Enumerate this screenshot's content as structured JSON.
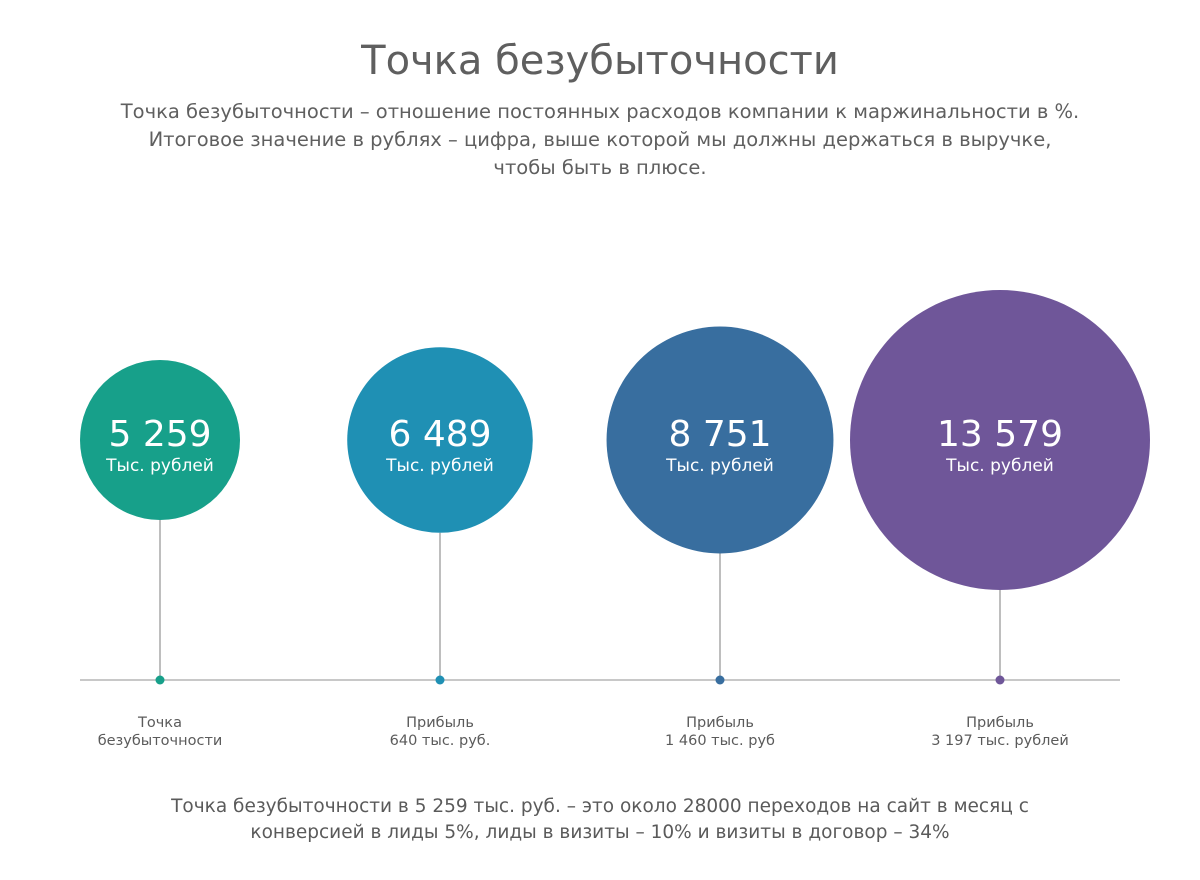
{
  "header": {
    "title": "Точка безубыточности",
    "description": [
      "Точка безубыточности – отношение постоянных расходов компании к маржинальности в %.",
      "Итоговое значение в рублях – цифра, выше которой мы должны держаться в выручке,",
      "чтобы быть в плюсе."
    ]
  },
  "footer": {
    "lines": [
      "Точка безубыточности в 5 259 тыс. руб. – это около 28000 переходов на сайт в месяц с",
      "конверсией в лиды 5%, лиды в визиты – 10% и визиты в договор – 34%"
    ]
  },
  "chart_data": {
    "type": "bubble-timeline",
    "grid": false,
    "legend": "none",
    "unit": "Тыс. рублей",
    "points": [
      {
        "value": 5259,
        "value_label": "5 259",
        "unit_label": "Тыс. рублей",
        "caption": [
          "Точка",
          "безубыточности"
        ],
        "color": "#17a08a"
      },
      {
        "value": 6489,
        "value_label": "6 489",
        "unit_label": "Тыс. рублей",
        "caption": [
          "Прибыль",
          "640 тыс. руб."
        ],
        "color": "#1f90b4"
      },
      {
        "value": 8751,
        "value_label": "8 751",
        "unit_label": "Тыс. рублей",
        "caption": [
          "Прибыль",
          "1 460 тыс. руб"
        ],
        "color": "#386e9f"
      },
      {
        "value": 13579,
        "value_label": "13 579",
        "unit_label": "Тыс. рублей",
        "caption": [
          "Прибыль",
          "3 197 тыс. рублей"
        ],
        "color": "#6f5699"
      }
    ],
    "axis_color": "#b5b5b5",
    "stem_color": "#a9a9a9",
    "caption_color": "#5b5b5b"
  }
}
